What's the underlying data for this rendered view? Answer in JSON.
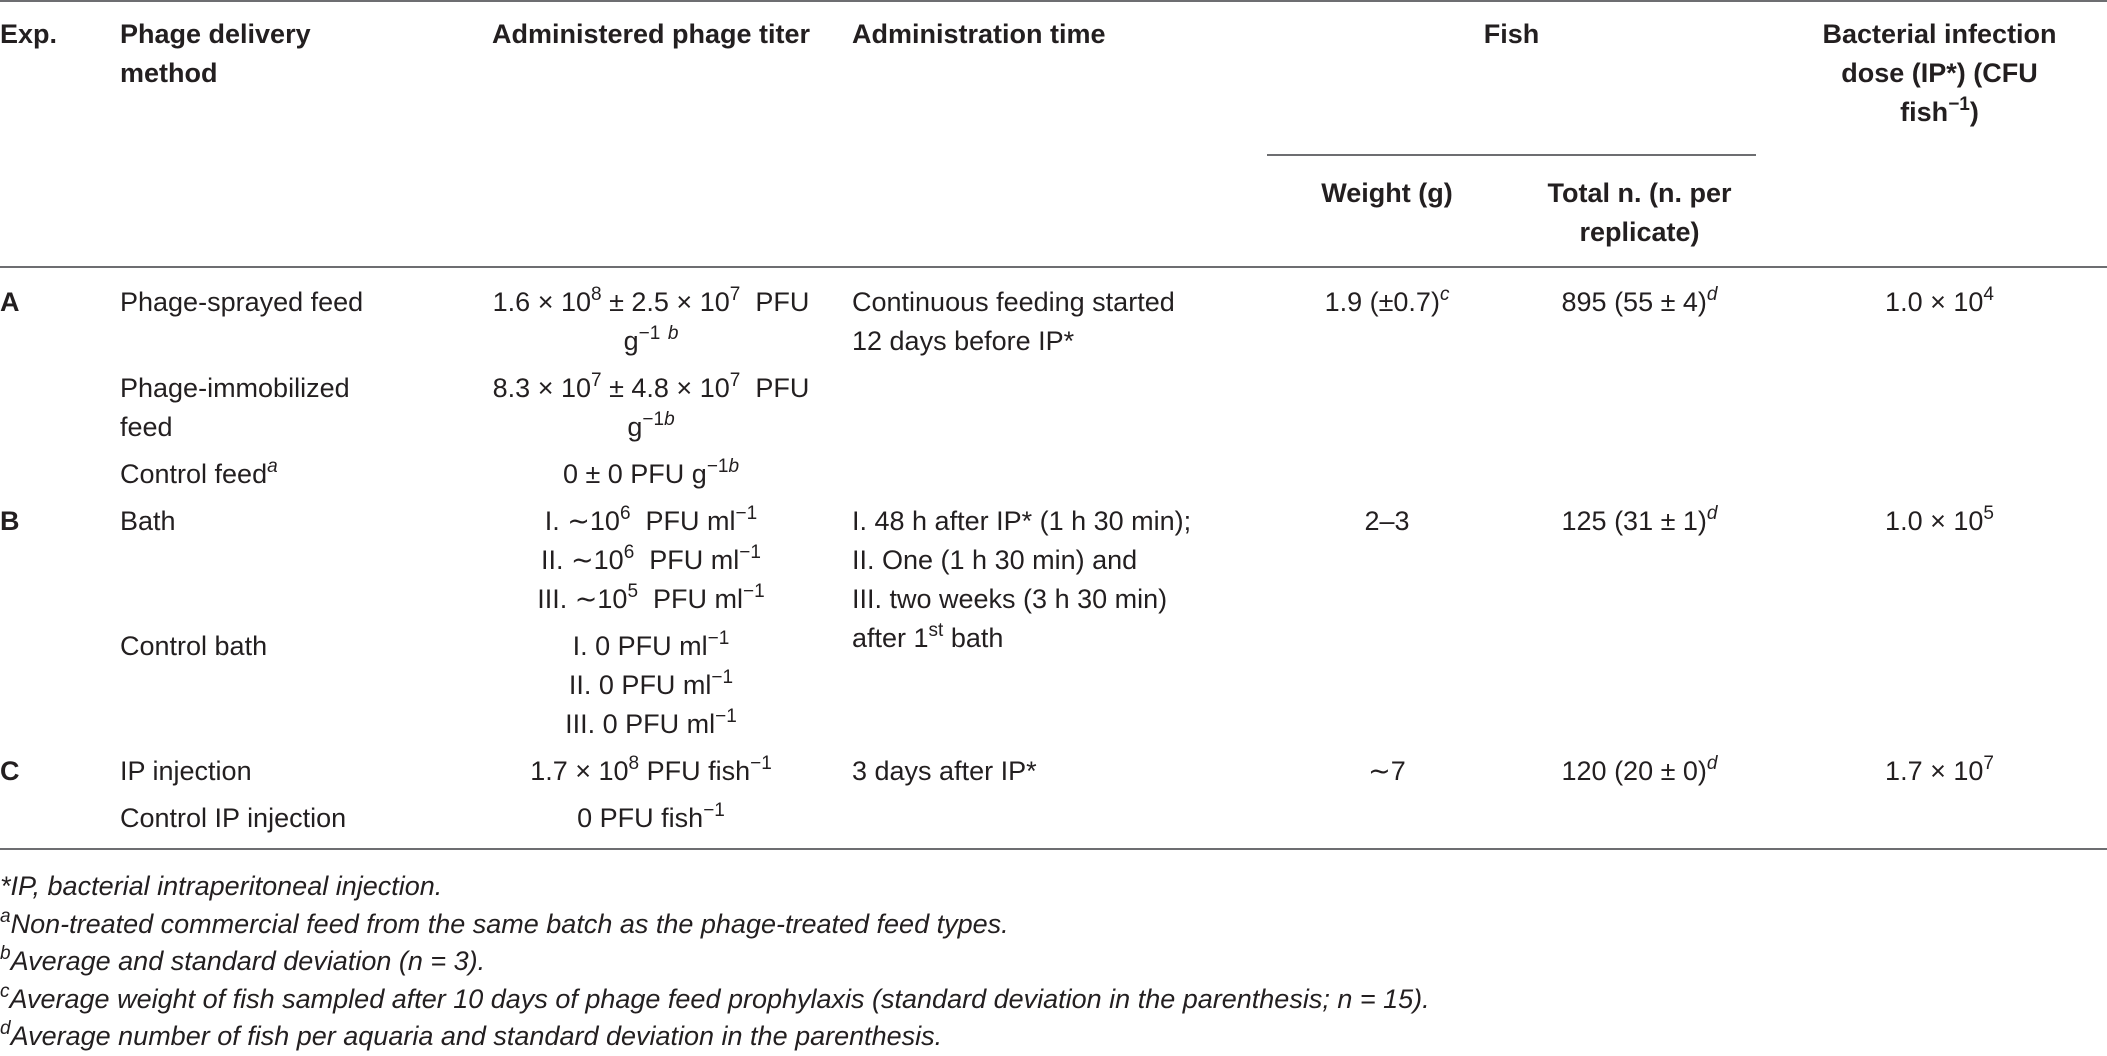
{
  "header": {
    "exp": "Exp.",
    "method_line1": "Phage delivery",
    "method_line2": "method",
    "titer": "Administered phage titer",
    "time": "Administration time",
    "fish": "Fish",
    "dose_line1": "Bacterial infection",
    "dose_line2": "dose (IP*) (CFU",
    "dose_line3_text": "fish",
    "dose_line3_sup": "−1",
    "dose_line3_end": ")",
    "weight": "Weight (g)",
    "total_line1": "Total n. (n. per",
    "total_line2": "replicate)"
  },
  "rows": {
    "a": {
      "exp": "A",
      "sprayed_method": "Phage-sprayed feed",
      "sprayed_titer_pre": "1.6 × 10",
      "sprayed_titer_exp1": "8",
      "sprayed_titer_mid": " ± 2.5 × 10",
      "sprayed_titer_exp2": "7",
      "sprayed_titer_end": "  PFU",
      "sprayed_titer_line2": "g",
      "sprayed_titer_line2_sup": "−1",
      "sprayed_titer_line2_note": "b",
      "time_line1": "Continuous feeding started",
      "time_line2": "12 days before IP*",
      "weight": "1.9 (±0.7)",
      "weight_note": "c",
      "total": "895 (55 ± 4)",
      "total_note": "d",
      "dose": "1.0 × 10",
      "dose_exp": "4",
      "immob_method_line1": "Phage-immobilized",
      "immob_method_line2": "feed",
      "immob_titer_pre": "8.3 × 10",
      "immob_titer_exp1": "7",
      "immob_titer_mid": " ± 4.8 × 10",
      "immob_titer_exp2": "7",
      "immob_titer_end": "  PFU",
      "immob_titer_line2": "g",
      "immob_titer_line2_sup": "−1",
      "immob_titer_line2_note": "b",
      "control_method": "Control feed",
      "control_method_note": "a",
      "control_titer": "0 ± 0 PFU g",
      "control_titer_sup": "−1",
      "control_titer_note": "b"
    },
    "b": {
      "exp": "B",
      "bath_method": "Bath",
      "bath_titer1_pre": "I. ∼10",
      "bath_titer1_exp": "6",
      "bath_titer1_end": "  PFU ml",
      "bath_titer2_pre": "II. ∼10",
      "bath_titer2_exp": "6",
      "bath_titer2_end": "  PFU ml",
      "bath_titer3_pre": "III. ∼10",
      "bath_titer3_exp": "5",
      "bath_titer3_end": "  PFU ml",
      "minus_one": "−1",
      "time_line1": "I. 48 h after IP* (1 h 30 min);",
      "time_line2": "II. One (1 h 30 min) and",
      "time_line3": "III. two weeks (3 h 30 min)",
      "time_line4_pre": "after 1",
      "time_line4_sup": "st",
      "time_line4_end": " bath",
      "weight": "2–3",
      "total": "125 (31 ± 1)",
      "total_note": "d",
      "dose": "1.0 × 10",
      "dose_exp": "5",
      "control_method": "Control bath",
      "control_titer1": "I. 0 PFU ml",
      "control_titer2": "II. 0 PFU ml",
      "control_titer3": "III. 0 PFU ml"
    },
    "c": {
      "exp": "C",
      "ip_method": "IP injection",
      "ip_titer_pre": "1.7 × 10",
      "ip_titer_exp": "8",
      "ip_titer_end": " PFU fish",
      "ip_titer_sup": "−1",
      "time": "3 days after IP*",
      "weight": "∼7",
      "total": "120 (20 ± 0)",
      "total_note": "d",
      "dose": "1.7 × 10",
      "dose_exp": "7",
      "control_method": "Control IP injection",
      "control_titer": "0 PFU fish",
      "control_titer_sup": "−1"
    }
  },
  "footnotes": {
    "star": "*IP, bacterial intraperitoneal injection.",
    "a_mark": "a",
    "a_text": "Non-treated commercial feed from the same batch as the phage-treated feed types.",
    "b_mark": "b",
    "b_text": "Average and standard deviation (n = 3).",
    "c_mark": "c",
    "c_text": "Average weight of fish sampled after 10 days of phage feed prophylaxis (standard deviation in the parenthesis; n = 15).",
    "d_mark": "d",
    "d_text": "Average number of fish per aquaria and standard deviation in the parenthesis."
  }
}
